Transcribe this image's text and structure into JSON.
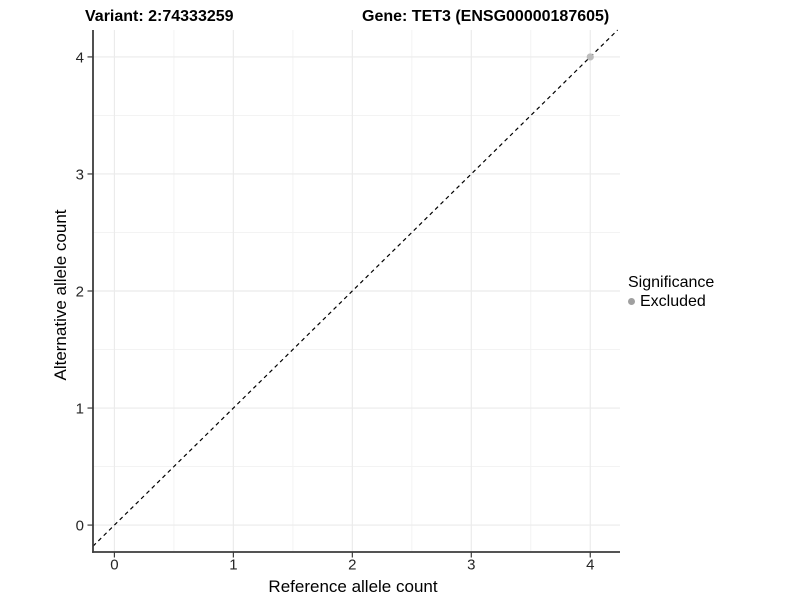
{
  "chart_data": {
    "type": "scatter",
    "title_left": "Variant: 2:74333259",
    "title_right": "Gene: TET3 (ENSG00000187605)",
    "xlabel": "Reference allele count",
    "ylabel": "Alternative allele count",
    "xlim": [
      -0.18,
      4.25
    ],
    "ylim": [
      -0.23,
      4.23
    ],
    "x_ticks": [
      0,
      1,
      2,
      3,
      4
    ],
    "y_ticks": [
      0,
      1,
      2,
      3,
      4
    ],
    "x_minor": [
      0.5,
      1.5,
      2.5,
      3.5
    ],
    "y_minor": [
      0.5,
      1.5,
      2.5,
      3.5
    ],
    "grid": "major+minor",
    "reference_line": {
      "kind": "identity y=x",
      "style": "dashed",
      "color": "#000000"
    },
    "series": [
      {
        "name": "Excluded",
        "marker": "circle",
        "color": "#bdbdbd",
        "points": [
          {
            "x": 4,
            "y": 4
          }
        ]
      }
    ],
    "legend": {
      "title": "Significance",
      "position": "right",
      "items": [
        {
          "label": "Excluded",
          "color": "#a0a0a0"
        }
      ]
    }
  },
  "colors": {
    "background": "#ffffff",
    "grid_major": "#ebebeb",
    "grid_minor": "#f3f3f3",
    "axis_line": "#3c3c3c",
    "tick_label": "#262626"
  }
}
